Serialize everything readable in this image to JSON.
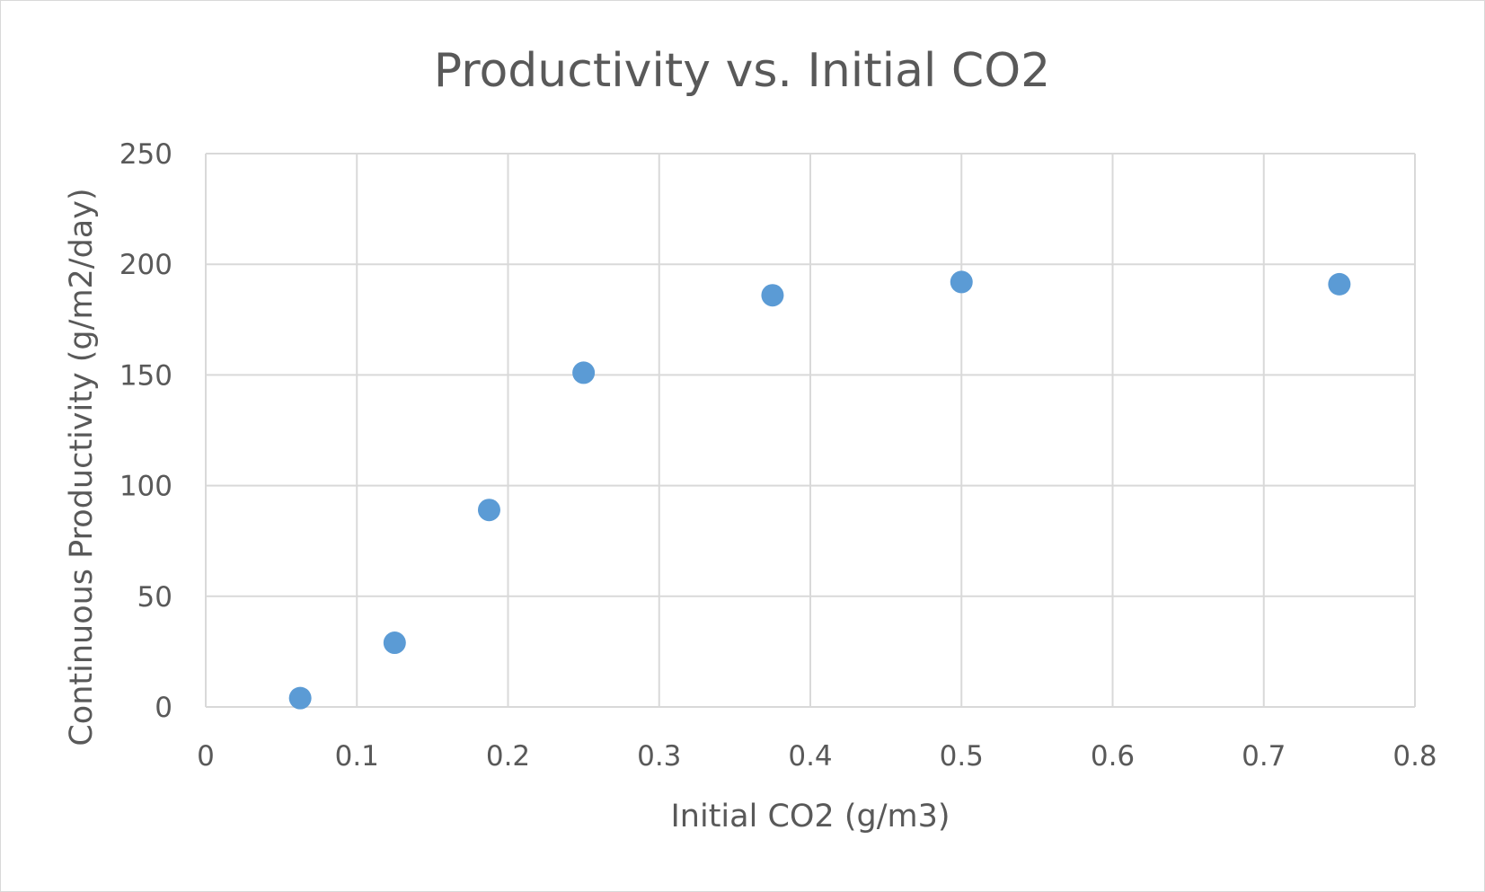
{
  "chart_data": {
    "type": "scatter",
    "title": "Productivity vs. Initial CO2",
    "xlabel": "Initial CO2 (g/m3)",
    "ylabel": "Continuous Productivity (g/m2/day)",
    "xlim": [
      0,
      0.8
    ],
    "ylim": [
      0,
      250
    ],
    "x_ticks": [
      "0",
      "0.1",
      "0.2",
      "0.3",
      "0.4",
      "0.5",
      "0.6",
      "0.7",
      "0.8"
    ],
    "y_ticks": [
      "0",
      "50",
      "100",
      "150",
      "200",
      "250"
    ],
    "grid": true,
    "legend": "none",
    "marker_color": "#5B9BD5",
    "points": [
      {
        "x": 0.0625,
        "y": 4
      },
      {
        "x": 0.125,
        "y": 29
      },
      {
        "x": 0.1875,
        "y": 89
      },
      {
        "x": 0.25,
        "y": 151
      },
      {
        "x": 0.375,
        "y": 186
      },
      {
        "x": 0.5,
        "y": 192
      },
      {
        "x": 0.75,
        "y": 191
      }
    ]
  }
}
